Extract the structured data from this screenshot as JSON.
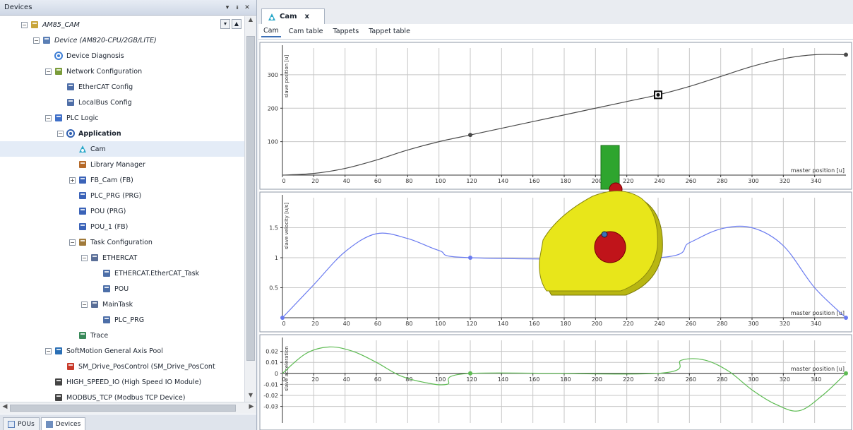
{
  "devices_panel": {
    "title": "Devices",
    "buttons": [
      "▾",
      "ᵻ",
      "✕"
    ],
    "tree": [
      {
        "label": "AM85_CAM",
        "depth": 0,
        "exp": "-",
        "icon": "project-icon",
        "italic": true
      },
      {
        "label": "Device (AM820-CPU/2GB/LITE)",
        "depth": 1,
        "exp": "-",
        "icon": "device-icon",
        "italic": true
      },
      {
        "label": "Device Diagnosis",
        "depth": 2,
        "exp": "",
        "icon": "diagnosis-icon"
      },
      {
        "label": "Network Configuration",
        "depth": 2,
        "exp": "-",
        "icon": "network-icon"
      },
      {
        "label": "EtherCAT Config",
        "depth": 3,
        "exp": "",
        "icon": "ethercat-icon"
      },
      {
        "label": "LocalBus Config",
        "depth": 3,
        "exp": "",
        "icon": "localbus-icon"
      },
      {
        "label": "PLC Logic",
        "depth": 2,
        "exp": "-",
        "icon": "plc-icon"
      },
      {
        "label": "Application",
        "depth": 3,
        "exp": "-",
        "icon": "application-icon",
        "bold": true
      },
      {
        "label": "Cam",
        "depth": 4,
        "exp": "",
        "icon": "cam-icon",
        "selected": true
      },
      {
        "label": "Library Manager",
        "depth": 4,
        "exp": "",
        "icon": "library-icon"
      },
      {
        "label": "FB_Cam (FB)",
        "depth": 4,
        "exp": "+",
        "icon": "pou-icon"
      },
      {
        "label": "PLC_PRG (PRG)",
        "depth": 4,
        "exp": "",
        "icon": "pou-icon"
      },
      {
        "label": "POU (PRG)",
        "depth": 4,
        "exp": "",
        "icon": "pou-icon"
      },
      {
        "label": "POU_1 (FB)",
        "depth": 4,
        "exp": "",
        "icon": "pou-icon"
      },
      {
        "label": "Task Configuration",
        "depth": 4,
        "exp": "-",
        "icon": "task-config-icon"
      },
      {
        "label": "ETHERCAT",
        "depth": 5,
        "exp": "-",
        "icon": "task-icon"
      },
      {
        "label": "ETHERCAT.EtherCAT_Task",
        "depth": 6,
        "exp": "",
        "icon": "pou-call-icon"
      },
      {
        "label": "POU",
        "depth": 6,
        "exp": "",
        "icon": "pou-call-icon"
      },
      {
        "label": "MainTask",
        "depth": 5,
        "exp": "-",
        "icon": "task-icon"
      },
      {
        "label": "PLC_PRG",
        "depth": 6,
        "exp": "",
        "icon": "pou-call-icon"
      },
      {
        "label": "Trace",
        "depth": 4,
        "exp": "",
        "icon": "trace-icon"
      },
      {
        "label": "SoftMotion General Axis Pool",
        "depth": 2,
        "exp": "-",
        "icon": "axis-pool-icon"
      },
      {
        "label": "SM_Drive_PosControl (SM_Drive_PosCont",
        "depth": 3,
        "exp": "",
        "icon": "drive-icon"
      },
      {
        "label": "HIGH_SPEED_IO (High Speed IO Module)",
        "depth": 2,
        "exp": "",
        "icon": "io-module-icon"
      },
      {
        "label": "MODBUS_TCP (Modbus TCP Device)",
        "depth": 2,
        "exp": "",
        "icon": "io-module-icon"
      }
    ],
    "bottom_tabs": [
      {
        "label": "POUs",
        "icon": "pous-icon"
      },
      {
        "label": "Devices",
        "icon": "devices-icon",
        "active": true
      }
    ]
  },
  "editor": {
    "tab_label": "Cam",
    "tab_close": "x",
    "subtabs": [
      "Cam",
      "Cam table",
      "Tappets",
      "Tappet table"
    ],
    "x_label": "master position [u]"
  },
  "colors": {
    "position": "#4a4a4a",
    "velocity": "#6a7bf0",
    "acceleration": "#5dbb52",
    "grid": "#c6c6c6",
    "cam_body": "#e8e61a",
    "cam_hub": "#c0141a",
    "follower": "#2ea52e"
  },
  "chart_data": [
    {
      "type": "line",
      "title": "",
      "ylabel": "slave position [u]",
      "xlabel": "master position [u]",
      "xlim": [
        0,
        360
      ],
      "ylim": [
        0,
        380
      ],
      "xticks": [
        0,
        20,
        40,
        60,
        80,
        100,
        120,
        140,
        160,
        180,
        200,
        220,
        240,
        260,
        280,
        300,
        320,
        340
      ],
      "yticks": [
        100,
        200,
        300
      ],
      "grid": true,
      "x": [
        0,
        20,
        40,
        60,
        80,
        100,
        120,
        140,
        160,
        180,
        200,
        220,
        240,
        260,
        280,
        300,
        320,
        340,
        360
      ],
      "y": [
        0,
        5,
        20,
        45,
        75,
        100,
        120,
        140,
        160,
        180,
        200,
        220,
        240,
        265,
        295,
        325,
        348,
        360,
        360
      ],
      "points": [
        [
          120,
          120
        ],
        [
          240,
          240
        ],
        [
          360,
          360
        ]
      ]
    },
    {
      "type": "line",
      "title": "",
      "ylabel": "slave velocity [u/s]",
      "xlabel": "master position [u]",
      "xlim": [
        0,
        360
      ],
      "ylim": [
        0,
        2.0
      ],
      "xticks": [
        0,
        20,
        40,
        60,
        80,
        100,
        120,
        140,
        160,
        180,
        200,
        220,
        240,
        260,
        280,
        300,
        320,
        340
      ],
      "yticks": [
        0.5,
        1,
        1.5
      ],
      "grid": true,
      "x": [
        0,
        20,
        40,
        60,
        80,
        100,
        120,
        240,
        260,
        280,
        300,
        320,
        340,
        360
      ],
      "y": [
        0.0,
        0.55,
        1.1,
        1.4,
        1.32,
        1.12,
        1.0,
        1.0,
        1.25,
        1.48,
        1.5,
        1.2,
        0.5,
        0.0
      ],
      "points": [
        [
          0,
          0.0
        ],
        [
          120,
          1.0
        ],
        [
          360,
          0.0
        ]
      ]
    },
    {
      "type": "line",
      "title": "",
      "ylabel": "slave acceleration",
      "xlabel": "master position [u]",
      "xlim": [
        0,
        360
      ],
      "ylim": [
        -0.045,
        0.03
      ],
      "xticks": [
        0,
        20,
        40,
        60,
        80,
        100,
        120,
        140,
        160,
        180,
        200,
        220,
        240,
        260,
        280,
        300,
        320,
        340
      ],
      "yticks": [
        0.02,
        0.01,
        0,
        -0.01,
        -0.02,
        -0.03
      ],
      "grid": true,
      "x": [
        0,
        15,
        30,
        45,
        60,
        75,
        90,
        105,
        120,
        240,
        255,
        270,
        285,
        300,
        315,
        330,
        345,
        360
      ],
      "y": [
        0,
        0.018,
        0.024,
        0.02,
        0.01,
        -0.002,
        -0.008,
        -0.01,
        0,
        0,
        0.012,
        0.012,
        0.002,
        -0.015,
        -0.028,
        -0.034,
        -0.02,
        0
      ],
      "points": [
        [
          120,
          0
        ],
        [
          360,
          0
        ]
      ]
    }
  ]
}
